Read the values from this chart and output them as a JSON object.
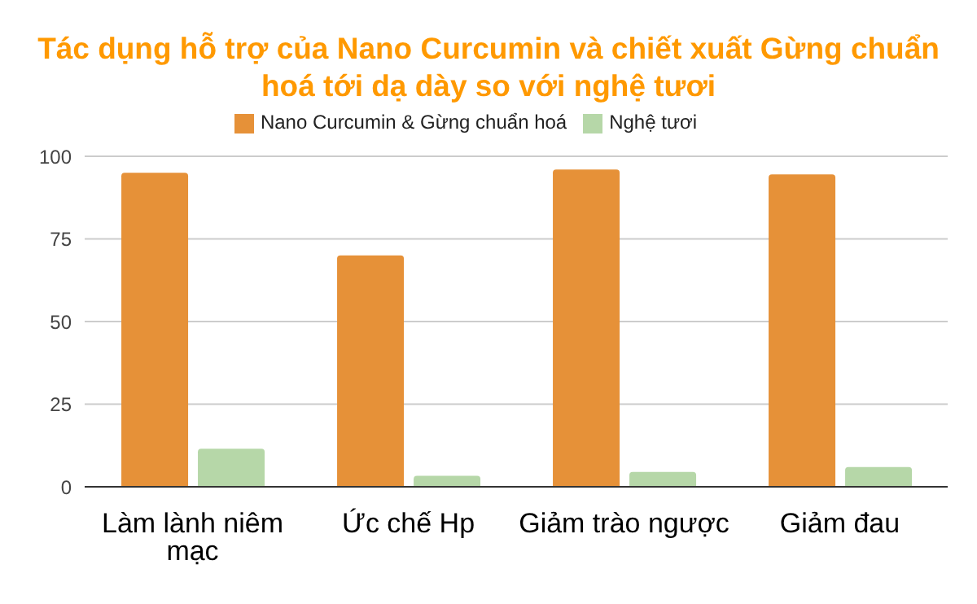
{
  "chart_data": {
    "type": "bar",
    "title": "Tác dụng hỗ trợ của Nano Curcumin và chiết xuất Gừng chuẩn hoá tới dạ dày so với nghệ tươi",
    "categories": [
      "Làm lành niêm mạc",
      "Ức chế Hp",
      "Giảm trào ngược",
      "Giảm đau"
    ],
    "series": [
      {
        "name": "Nano Curcumin & Gừng chuẩn hoá",
        "color": "#e69138",
        "values": [
          95,
          70,
          96,
          94.5
        ]
      },
      {
        "name": "Nghệ tươi",
        "color": "#b6d7a8",
        "values": [
          11.5,
          3.3,
          4.5,
          6
        ]
      }
    ],
    "ylim": [
      0,
      100
    ],
    "yticks": [
      0,
      25,
      50,
      75,
      100
    ],
    "grid": "y",
    "legend": "top"
  }
}
